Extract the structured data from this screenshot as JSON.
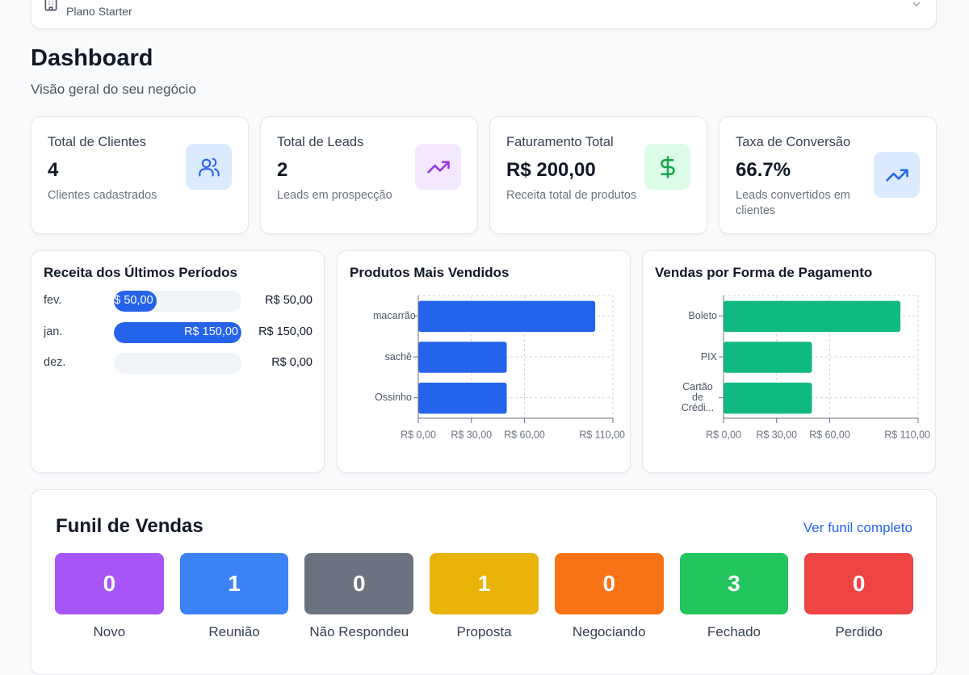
{
  "header": {
    "plan": "Plano Starter"
  },
  "page": {
    "title": "Dashboard",
    "subtitle": "Visão geral do seu negócio"
  },
  "stats": [
    {
      "label": "Total de Clientes",
      "value": "4",
      "description": "Clientes cadastrados"
    },
    {
      "label": "Total de Leads",
      "value": "2",
      "description": "Leads em prospecção"
    },
    {
      "label": "Faturamento Total",
      "value": "R$ 200,00",
      "description": "Receita total de produtos"
    },
    {
      "label": "Taxa de Conversão",
      "value": "66.7%",
      "description": "Leads convertidos em clientes"
    }
  ],
  "chart_data": [
    {
      "type": "progress",
      "title": "Receita dos Últimos Períodos",
      "categories": [
        "fev.",
        "jan.",
        "dez."
      ],
      "values": [
        50,
        150,
        0
      ],
      "value_labels": [
        "R$ 50,00",
        "R$ 150,00",
        "R$ 0,00"
      ],
      "color": "#2563eb"
    },
    {
      "type": "hbar",
      "title": "Produtos Mais Vendidos",
      "categories": [
        "macarrão",
        "sachê",
        "Ossinho"
      ],
      "values": [
        100,
        50,
        50
      ],
      "color": "#2563eb",
      "xlim": [
        0,
        110
      ],
      "xticks": [
        {
          "value": 0,
          "label": "R$ 0,00"
        },
        {
          "value": 30,
          "label": "R$ 30,00"
        },
        {
          "value": 60,
          "label": "R$ 60,00"
        },
        {
          "value": 110,
          "label": "R$ 110,00"
        }
      ],
      "grid": true
    },
    {
      "type": "hbar",
      "title": "Vendas por Forma de Pagamento",
      "categories": [
        "Boleto",
        "PIX",
        "Cartão de Crédi..."
      ],
      "values": [
        100,
        50,
        50
      ],
      "color": "#10b981",
      "xlim": [
        0,
        110
      ],
      "xticks": [
        {
          "value": 0,
          "label": "R$ 0,00"
        },
        {
          "value": 30,
          "label": "R$ 30,00"
        },
        {
          "value": 60,
          "label": "R$ 60,00"
        },
        {
          "value": 110,
          "label": "R$ 110,00"
        }
      ],
      "grid": true
    }
  ],
  "funnel": {
    "title": "Funil de Vendas",
    "link": "Ver funil completo",
    "stages": [
      {
        "name": "Novo",
        "count": 0,
        "color": "#a855f7"
      },
      {
        "name": "Reunião",
        "count": 1,
        "color": "#3b82f6"
      },
      {
        "name": "Não Respondeu",
        "count": 0,
        "color": "#6b7280"
      },
      {
        "name": "Proposta",
        "count": 1,
        "color": "#eab308"
      },
      {
        "name": "Negociando",
        "count": 0,
        "color": "#f97316"
      },
      {
        "name": "Fechado",
        "count": 3,
        "color": "#22c55e"
      },
      {
        "name": "Perdido",
        "count": 0,
        "color": "#ef4444"
      }
    ]
  }
}
